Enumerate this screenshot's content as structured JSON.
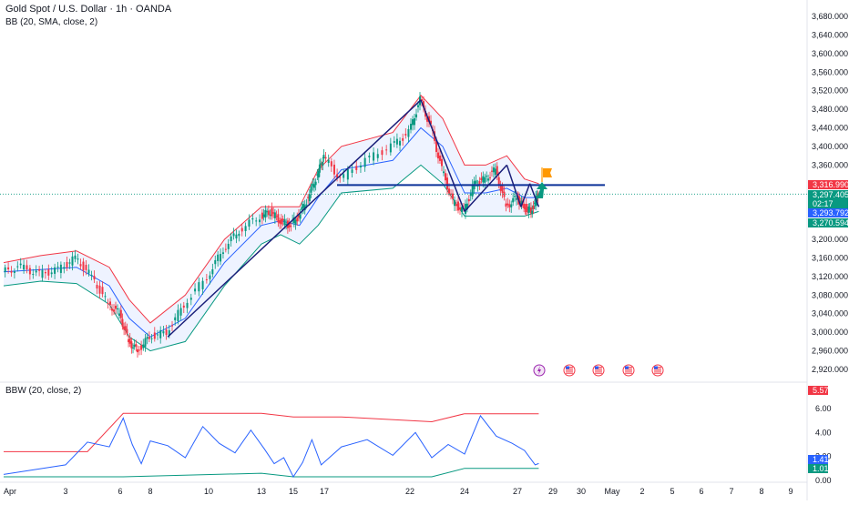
{
  "chart_data": {
    "type": "line",
    "title": "Gold Spot / U.S. Dollar · 1h · OANDA",
    "indicator_main": "BB (20, SMA, close, 2)",
    "indicator_sub": "BBW (20, close, 2)",
    "price_axis": {
      "range": [
        2900,
        3700
      ],
      "ticks": [
        "3,680.000",
        "3,640.000",
        "3,600.000",
        "3,560.000",
        "3,520.000",
        "3,480.000",
        "3,440.000",
        "3,400.000",
        "3,360.000",
        "3,200.000",
        "3,160.000",
        "3,120.000",
        "3,080.000",
        "3,040.000",
        "3,000.000",
        "2,960.000",
        "2,920.000"
      ],
      "tick_values": [
        3680,
        3640,
        3600,
        3560,
        3520,
        3480,
        3440,
        3400,
        3360,
        3200,
        3160,
        3120,
        3080,
        3040,
        3000,
        2960,
        2920
      ]
    },
    "price_tags": [
      {
        "label": "3,316.990",
        "value": 3316.99,
        "color": "#f23645"
      },
      {
        "label": "3,297.405",
        "value": 3297.405,
        "color": "#089981"
      },
      {
        "label": "02:17",
        "value": 3286,
        "color": "#089981"
      },
      {
        "label": "3,293.792",
        "value": 3277,
        "color": "#2962ff"
      },
      {
        "label": "3,270.594",
        "value": 3262,
        "color": "#089981"
      }
    ],
    "bbw_axis": {
      "range": [
        0,
        6.2
      ],
      "ticks": [
        "6.00",
        "4.00",
        "2.00",
        "0.00"
      ],
      "tick_values": [
        6,
        4,
        2,
        0
      ]
    },
    "bbw_tags": [
      {
        "label": "5.57",
        "value": 5.57,
        "color": "#f23645"
      },
      {
        "label": "1.41",
        "value": 1.41,
        "color": "#2962ff"
      },
      {
        "label": "1.01",
        "value": 1.01,
        "color": "#089981"
      }
    ],
    "x_axis": {
      "ticks": [
        "Apr",
        "3",
        "6",
        "8",
        "10",
        "13",
        "15",
        "17",
        "22",
        "24",
        "27",
        "29",
        "30",
        "May",
        "2",
        "5",
        "6",
        "7",
        "8",
        "9"
      ],
      "tick_positions": [
        0,
        1,
        2,
        3,
        4,
        5,
        6,
        7,
        8,
        9,
        10,
        11,
        12,
        13,
        14,
        15,
        16,
        17,
        18,
        19
      ]
    },
    "series": [
      {
        "role": "price",
        "x": [
          0,
          0.3,
          0.6,
          0.9,
          1.2,
          1.5,
          1.8,
          2.0,
          2.3,
          2.6,
          3.0,
          3.3,
          3.6,
          4.0,
          4.3,
          4.6,
          5.0,
          5.3,
          5.6,
          5.9,
          6.2,
          6.5,
          6.8,
          7.0,
          7.2,
          7.5,
          7.8,
          8.0,
          8.2,
          8.4,
          8.6,
          8.8,
          9.0,
          9.2,
          9.4,
          9.6,
          9.8,
          10.0,
          10.2,
          10.4,
          10.6
        ],
        "values": [
          3130,
          3140,
          3125,
          3135,
          3160,
          3120,
          3060,
          3040,
          2980,
          2960,
          2990,
          3000,
          3060,
          3120,
          3180,
          3220,
          3250,
          3260,
          3240,
          3230,
          3250,
          3290,
          3340,
          3380,
          3330,
          3370,
          3400,
          3430,
          3500,
          3440,
          3350,
          3280,
          3260,
          3320,
          3330,
          3350,
          3270,
          3290,
          3270,
          3260,
          3297
        ],
        "color": "#131722"
      },
      {
        "role": "bb_upper",
        "x": [
          0,
          0.6,
          1.2,
          1.8,
          2.3,
          3.0,
          3.6,
          4.3,
          5.0,
          5.6,
          6.2,
          6.8,
          7.2,
          7.8,
          8.2,
          8.6,
          9.0,
          9.4,
          9.8,
          10.2,
          10.6
        ],
        "values": [
          3150,
          3165,
          3175,
          3140,
          3070,
          3020,
          3080,
          3200,
          3270,
          3270,
          3270,
          3350,
          3400,
          3430,
          3510,
          3460,
          3360,
          3360,
          3380,
          3330,
          3320
        ],
        "color": "#f23645"
      },
      {
        "role": "bb_middle",
        "x": [
          0,
          0.6,
          1.2,
          1.8,
          2.3,
          3.0,
          3.6,
          4.3,
          5.0,
          5.6,
          6.2,
          6.8,
          7.2,
          7.8,
          8.2,
          8.6,
          9.0,
          9.4,
          9.8,
          10.2,
          10.6
        ],
        "values": [
          3130,
          3135,
          3140,
          3100,
          3030,
          2990,
          3030,
          3150,
          3230,
          3240,
          3230,
          3290,
          3350,
          3370,
          3440,
          3400,
          3300,
          3300,
          3310,
          3290,
          3290
        ],
        "color": "#2962ff"
      },
      {
        "role": "bb_lower",
        "x": [
          0,
          0.6,
          1.2,
          1.8,
          2.3,
          3.0,
          3.6,
          4.3,
          5.0,
          5.6,
          6.2,
          6.8,
          7.2,
          7.8,
          8.2,
          8.6,
          9.0,
          9.4,
          9.8,
          10.2,
          10.6
        ],
        "values": [
          3100,
          3110,
          3105,
          3060,
          2990,
          2960,
          2980,
          3100,
          3190,
          3210,
          3190,
          3230,
          3300,
          3310,
          3360,
          3320,
          3250,
          3250,
          3250,
          3250,
          3260
        ],
        "color": "#089981"
      },
      {
        "role": "bbw",
        "x": [
          0,
          0.5,
          1.0,
          1.4,
          1.8,
          2.1,
          2.4,
          2.7,
          3.0,
          3.3,
          3.6,
          3.9,
          4.2,
          4.5,
          4.8,
          5.1,
          5.4,
          5.7,
          6.0,
          6.3,
          6.6,
          6.9,
          7.2,
          7.5,
          7.8,
          8.1,
          8.4,
          8.7,
          9.0,
          9.3,
          9.6,
          9.9,
          10.2,
          10.5,
          10.6
        ],
        "values": [
          0.5,
          0.9,
          1.3,
          3.2,
          2.8,
          5.2,
          3.0,
          1.4,
          3.3,
          2.9,
          1.9,
          4.5,
          3.1,
          2.3,
          4.2,
          2.6,
          1.4,
          1.9,
          0.3,
          1.5,
          3.4,
          1.3,
          2.8,
          3.4,
          2.1,
          4.0,
          1.9,
          3.0,
          2.2,
          5.4,
          3.7,
          3.1,
          2.5,
          1.3,
          1.41
        ],
        "color": "#2962ff"
      },
      {
        "role": "bbw_highest",
        "x": [
          0,
          1.4,
          2.1,
          5.0,
          6.0,
          7.2,
          8.4,
          9.0,
          10.6
        ],
        "values": [
          2.4,
          2.4,
          5.6,
          5.6,
          5.3,
          5.3,
          4.9,
          5.57,
          5.57
        ],
        "color": "#f23645"
      },
      {
        "role": "bbw_lowest",
        "x": [
          0,
          1.4,
          2.1,
          5.0,
          6.0,
          7.2,
          8.4,
          9.0,
          10.6
        ],
        "values": [
          0.3,
          0.3,
          0.3,
          0.6,
          0.3,
          0.3,
          0.3,
          1.01,
          1.01
        ],
        "color": "#089981"
      }
    ],
    "drawings": {
      "horizontal_level": 3316.99,
      "trend_segments": [
        {
          "x": [
            3.3,
            8.2
          ],
          "values": [
            2990,
            3500
          ]
        },
        {
          "x": [
            8.2,
            9.0
          ],
          "values": [
            3500,
            3260
          ]
        },
        {
          "x": [
            9.0,
            9.8
          ],
          "values": [
            3260,
            3360
          ]
        },
        {
          "x": [
            9.8,
            10.1
          ],
          "values": [
            3360,
            3270
          ]
        },
        {
          "x": [
            10.1,
            10.35
          ],
          "values": [
            3270,
            3320
          ]
        },
        {
          "x": [
            10.35,
            10.6
          ],
          "values": [
            3320,
            3270
          ]
        }
      ]
    },
    "event_icons": [
      "flash-icon",
      "us-flag-icon",
      "us-flag-icon",
      "us-flag-icon",
      "us-flag-icon"
    ],
    "colors": {
      "up": "#089981",
      "down": "#f23645",
      "accent": "#2962ff",
      "flag": "#ff9800"
    },
    "grid": false,
    "legend": "top-left"
  }
}
